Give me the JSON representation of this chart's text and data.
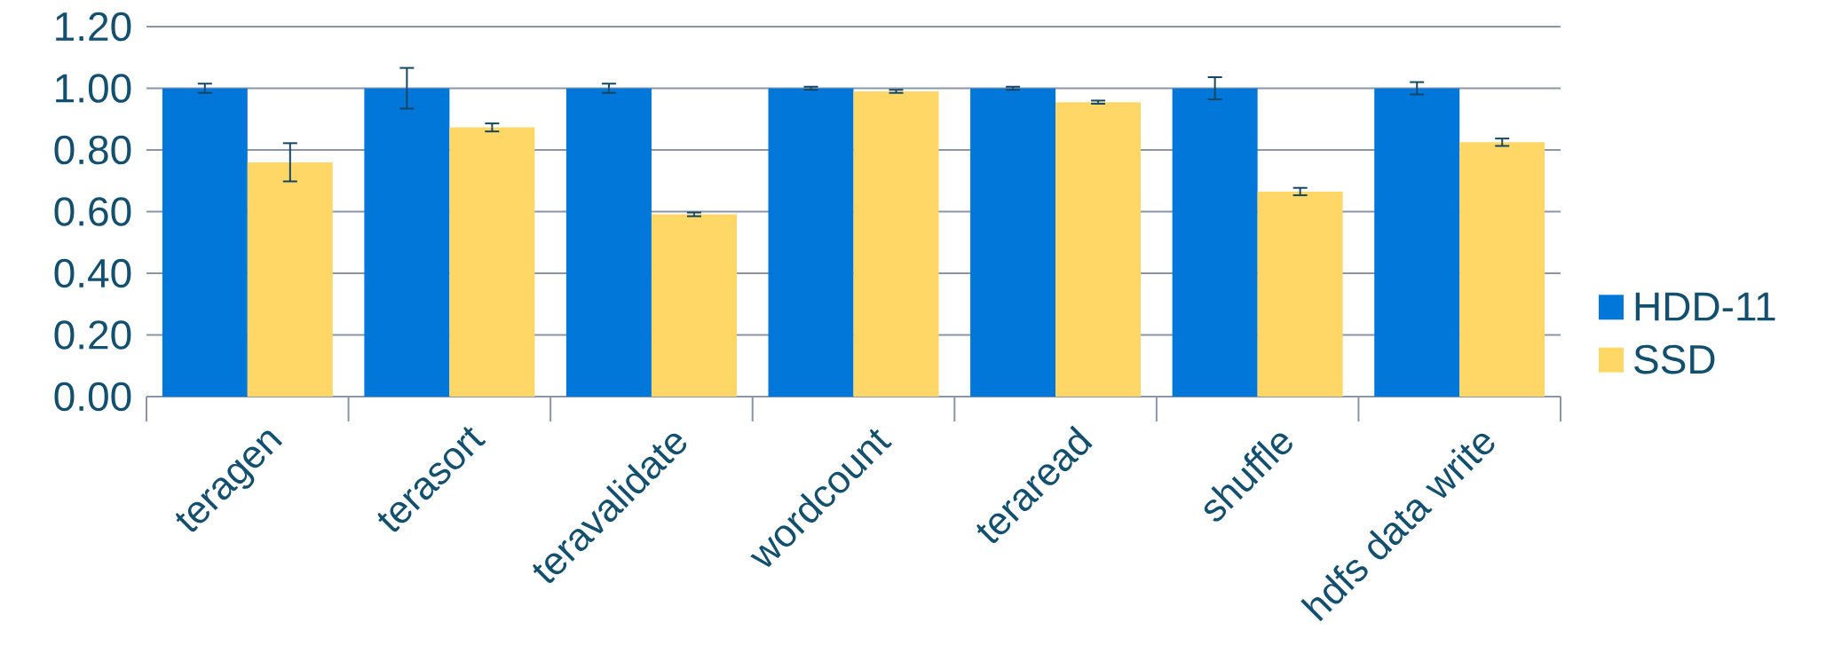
{
  "chart_data": {
    "type": "bar",
    "categories": [
      "teragen",
      "terasort",
      "teravalidate",
      "wordcount",
      "teraread",
      "shuffle",
      "hdfs data write"
    ],
    "series": [
      {
        "name": "HDD-11",
        "color": "#0077d9",
        "values": [
          1.0,
          1.0,
          1.0,
          1.0,
          1.0,
          1.0,
          1.0
        ],
        "errors": [
          0.015,
          0.066,
          0.015,
          0.005,
          0.005,
          0.036,
          0.02
        ]
      },
      {
        "name": "SSD",
        "color": "#ffd766",
        "values": [
          0.76,
          0.873,
          0.591,
          0.99,
          0.955,
          0.665,
          0.825
        ],
        "errors": [
          0.062,
          0.013,
          0.006,
          0.005,
          0.005,
          0.012,
          0.012
        ]
      }
    ],
    "ylim": [
      0,
      1.2
    ],
    "yticks": [
      {
        "value": 0,
        "label": "0.00"
      },
      {
        "value": 0.2,
        "label": "0.20"
      },
      {
        "value": 0.4,
        "label": "0.40"
      },
      {
        "value": 0.6,
        "label": "0.60"
      },
      {
        "value": 0.8,
        "label": "0.80"
      },
      {
        "value": 1.0,
        "label": "1.00"
      },
      {
        "value": 1.2,
        "label": "1.20"
      }
    ],
    "grid": "y",
    "legend": "right"
  }
}
